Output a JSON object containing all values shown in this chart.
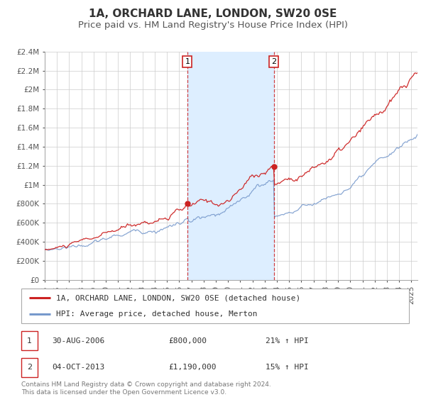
{
  "title": "1A, ORCHARD LANE, LONDON, SW20 0SE",
  "subtitle": "Price paid vs. HM Land Registry's House Price Index (HPI)",
  "ylim": [
    0,
    2400000
  ],
  "xlim_start": 1995.0,
  "xlim_end": 2025.5,
  "yticks": [
    0,
    200000,
    400000,
    600000,
    800000,
    1000000,
    1200000,
    1400000,
    1600000,
    1800000,
    2000000,
    2200000,
    2400000
  ],
  "ytick_labels": [
    "£0",
    "£200K",
    "£400K",
    "£600K",
    "£800K",
    "£1M",
    "£1.2M",
    "£1.4M",
    "£1.6M",
    "£1.8M",
    "£2M",
    "£2.2M",
    "£2.4M"
  ],
  "xticks": [
    1995,
    1996,
    1997,
    1998,
    1999,
    2000,
    2001,
    2002,
    2003,
    2004,
    2005,
    2006,
    2007,
    2008,
    2009,
    2010,
    2011,
    2012,
    2013,
    2014,
    2015,
    2016,
    2017,
    2018,
    2019,
    2020,
    2021,
    2022,
    2023,
    2024,
    2025
  ],
  "red_line_color": "#cc2222",
  "blue_line_color": "#7799cc",
  "shaded_region_color": "#ddeeff",
  "shaded_x_start": 2006.67,
  "shaded_x_end": 2013.75,
  "dashed_line_1_x": 2006.67,
  "dashed_line_2_x": 2013.75,
  "marker1_x": 2006.67,
  "marker1_y": 800000,
  "marker2_x": 2013.75,
  "marker2_y": 1190000,
  "legend_label_red": "1A, ORCHARD LANE, LONDON, SW20 0SE (detached house)",
  "legend_label_blue": "HPI: Average price, detached house, Merton",
  "transaction1_date": "30-AUG-2006",
  "transaction1_price": "£800,000",
  "transaction1_hpi": "21% ↑ HPI",
  "transaction2_date": "04-OCT-2013",
  "transaction2_price": "£1,190,000",
  "transaction2_hpi": "15% ↑ HPI",
  "footer_text": "Contains HM Land Registry data © Crown copyright and database right 2024.\nThis data is licensed under the Open Government Licence v3.0.",
  "background_color": "#ffffff",
  "grid_color": "#cccccc",
  "title_fontsize": 11,
  "subtitle_fontsize": 9.5,
  "tick_fontsize": 7.5,
  "legend_fontsize": 8,
  "footer_fontsize": 6.5
}
